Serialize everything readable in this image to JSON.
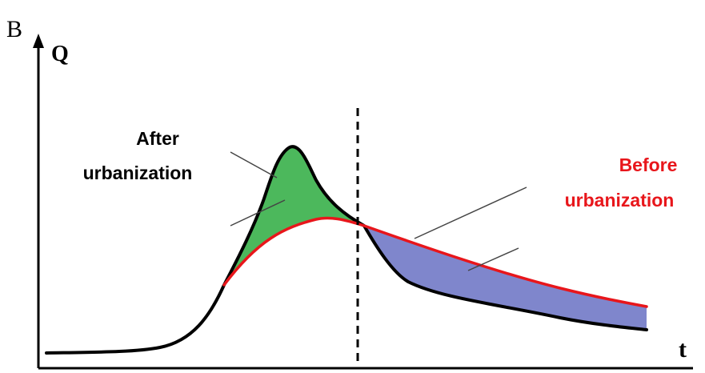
{
  "corner_label": "B",
  "y_axis_label": "Q",
  "x_axis_label": "t",
  "after_label": {
    "line1": "After",
    "line2": "urbanization"
  },
  "before_label": {
    "line1": "Before",
    "line2": "urbanization"
  },
  "colors": {
    "after_curve": "#000000",
    "before_curve": "#e8161b",
    "peak_excess_fill": "#4cb85c",
    "recession_fill": "#7f86cc",
    "before_text": "#e8161b",
    "after_text": "#000000"
  }
}
